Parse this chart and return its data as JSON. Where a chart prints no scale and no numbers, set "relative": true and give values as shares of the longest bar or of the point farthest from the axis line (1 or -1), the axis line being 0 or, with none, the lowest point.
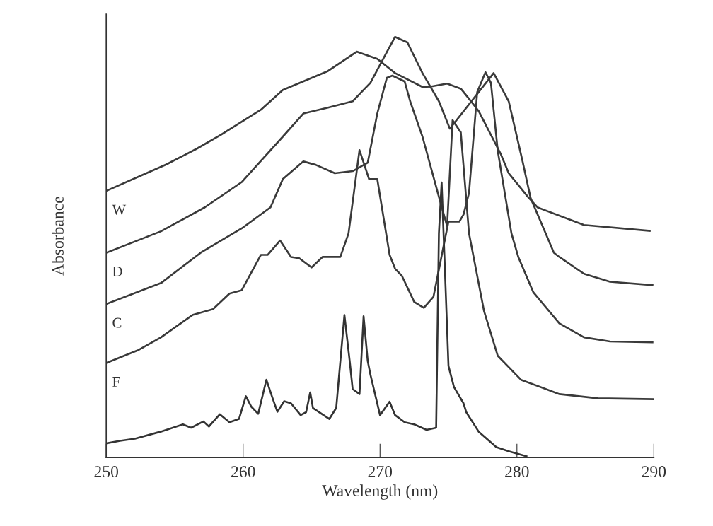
{
  "chart_data": {
    "type": "line",
    "xlabel": "Wavelength (nm)",
    "ylabel": "Absorbance",
    "relative": true,
    "xlim": [
      250,
      290
    ],
    "xticks": [
      250,
      260,
      270,
      280,
      290
    ],
    "grid": false,
    "legend": false,
    "marker": "none",
    "line_style": "solid",
    "series": [
      {
        "name": "W",
        "color": "#3a3a3a",
        "x": [
          250.0,
          254.4,
          256.6,
          258.4,
          261.3,
          262.9,
          266.2,
          268.3,
          269.8,
          271.1,
          273.1,
          273.7,
          274.9,
          275.9,
          276.6,
          277.2,
          278.8,
          279.4,
          280.8,
          281.5,
          284.9,
          289.7
        ],
        "values": [
          0.634,
          0.697,
          0.734,
          0.768,
          0.827,
          0.874,
          0.919,
          0.965,
          0.948,
          0.914,
          0.881,
          0.882,
          0.889,
          0.877,
          0.849,
          0.824,
          0.723,
          0.676,
          0.62,
          0.595,
          0.553,
          0.539
        ]
      },
      {
        "name": "D",
        "color": "#3a3a3a",
        "x": [
          250.0,
          254.0,
          257.2,
          259.9,
          262.9,
          264.4,
          266.2,
          268.0,
          269.3,
          270.4,
          271.1,
          272.0,
          273.1,
          274.3,
          275.1,
          278.3,
          279.4,
          280.4,
          281.0,
          282.7,
          283.1,
          284.9,
          286.8,
          289.9
        ],
        "values": [
          0.487,
          0.538,
          0.595,
          0.655,
          0.763,
          0.818,
          0.832,
          0.847,
          0.891,
          0.958,
          1.0,
          0.987,
          0.914,
          0.847,
          0.782,
          0.914,
          0.847,
          0.706,
          0.617,
          0.487,
          0.477,
          0.437,
          0.418,
          0.41
        ]
      },
      {
        "name": "C",
        "color": "#3a3a3a",
        "x": [
          250.0,
          254.0,
          256.9,
          259.9,
          262.0,
          262.9,
          264.4,
          265.3,
          266.7,
          268.0,
          269.1,
          269.8,
          270.5,
          270.9,
          271.8,
          272.2,
          273.1,
          274.3,
          274.9,
          275.3,
          275.9,
          276.5,
          277.6,
          278.6,
          280.3,
          283.1,
          285.9,
          290.0
        ],
        "values": [
          0.365,
          0.415,
          0.487,
          0.545,
          0.595,
          0.662,
          0.704,
          0.696,
          0.676,
          0.681,
          0.701,
          0.818,
          0.903,
          0.908,
          0.894,
          0.847,
          0.763,
          0.62,
          0.55,
          0.802,
          0.773,
          0.533,
          0.348,
          0.242,
          0.185,
          0.151,
          0.141,
          0.139
        ]
      },
      {
        "name": "F",
        "color": "#3a3a3a",
        "x": [
          250.0,
          252.3,
          254.0,
          256.3,
          257.8,
          259.0,
          259.9,
          261.3,
          261.8,
          262.7,
          263.5,
          264.1,
          265.0,
          265.8,
          267.1,
          267.7,
          268.5,
          269.2,
          269.8,
          270.7,
          271.1,
          271.6,
          272.5,
          273.2,
          273.9,
          275.0,
          275.8,
          276.1,
          276.5,
          277.1,
          277.7,
          278.1,
          278.6,
          279.6,
          280.1,
          281.2,
          283.1,
          284.9,
          286.8,
          289.9
        ],
        "values": [
          0.225,
          0.255,
          0.286,
          0.339,
          0.353,
          0.39,
          0.398,
          0.482,
          0.482,
          0.516,
          0.477,
          0.474,
          0.452,
          0.477,
          0.477,
          0.533,
          0.731,
          0.662,
          0.662,
          0.482,
          0.449,
          0.432,
          0.37,
          0.356,
          0.382,
          0.561,
          0.561,
          0.578,
          0.629,
          0.869,
          0.916,
          0.891,
          0.729,
          0.533,
          0.477,
          0.393,
          0.319,
          0.286,
          0.276,
          0.274
        ]
      },
      {
        "color": "#333333",
        "x": [
          250.0,
          251.0,
          252.1,
          254.0,
          255.6,
          256.2,
          257.1,
          257.5,
          258.3,
          259.0,
          259.7,
          260.2,
          260.6,
          261.1,
          261.7,
          262.1,
          262.5,
          263.0,
          263.5,
          264.2,
          264.6,
          264.9,
          265.1,
          266.3,
          266.8,
          267.4,
          267.8,
          268.0,
          268.5,
          268.8,
          269.1,
          269.3,
          270.0,
          270.7,
          271.1,
          271.8,
          272.5,
          273.4,
          274.1,
          274.3,
          274.5,
          274.7,
          275.0,
          275.4,
          276.1,
          276.3,
          277.2,
          278.5,
          279.4,
          280.7
        ],
        "values": [
          0.034,
          0.04,
          0.045,
          0.062,
          0.079,
          0.071,
          0.086,
          0.074,
          0.103,
          0.084,
          0.092,
          0.146,
          0.121,
          0.104,
          0.185,
          0.146,
          0.109,
          0.134,
          0.129,
          0.101,
          0.108,
          0.155,
          0.118,
          0.092,
          0.118,
          0.339,
          0.225,
          0.163,
          0.151,
          0.336,
          0.23,
          0.197,
          0.101,
          0.133,
          0.101,
          0.084,
          0.079,
          0.066,
          0.071,
          0.533,
          0.654,
          0.482,
          0.218,
          0.168,
          0.129,
          0.108,
          0.062,
          0.025,
          0.015,
          0.003
        ]
      }
    ]
  }
}
